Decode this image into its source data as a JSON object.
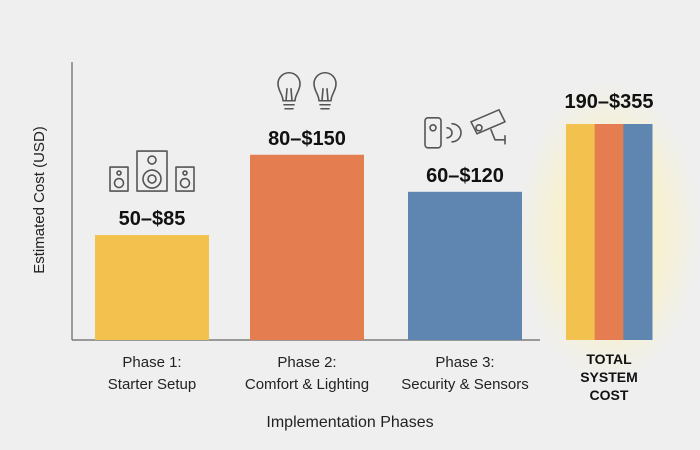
{
  "chart_data": {
    "type": "bar",
    "title": "",
    "xlabel": "Implementation Phases",
    "ylabel": "Estimated Cost (USD)",
    "categories": [
      {
        "line1": "Phase 1:",
        "line2": "Starter Setup"
      },
      {
        "line1": "Phase 2:",
        "line2": "Comfort & Lighting"
      },
      {
        "line1": "Phase 3:",
        "line2": "Security & Sensors"
      }
    ],
    "values": [
      85,
      150,
      120
    ],
    "ranges": [
      [
        50,
        85
      ],
      [
        80,
        150
      ],
      [
        60,
        120
      ]
    ],
    "data_labels": [
      "50–$85",
      "80–$150",
      "60–$120"
    ],
    "colors": [
      "#f2c14e",
      "#e47e50",
      "#5f86b0"
    ],
    "icons": [
      "speaker-set-icon",
      "light-bulb-icon",
      "security-camera-icon"
    ],
    "ylim": [
      0,
      200
    ],
    "grid": false,
    "total": {
      "label_lines": [
        "TOTAL",
        "SYSTEM",
        "COST"
      ],
      "value": 355,
      "range": [
        190,
        355
      ],
      "data_label": "190–$355",
      "segment_colors": [
        "#f2c14e",
        "#e47e50",
        "#5f86b0"
      ],
      "glow_color": "#ffe680"
    }
  }
}
